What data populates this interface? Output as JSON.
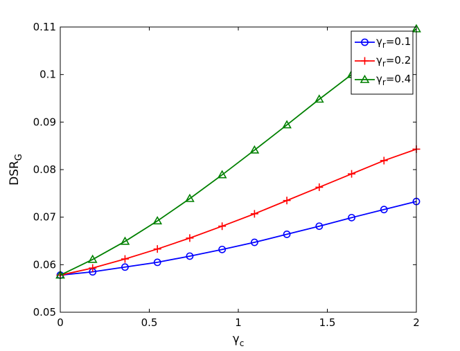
{
  "chart_data": {
    "type": "line",
    "title": "",
    "xlabel": {
      "main": "γ",
      "sub": "c"
    },
    "ylabel": {
      "main": "DSR",
      "sub": "G"
    },
    "xlim": [
      0,
      2
    ],
    "ylim": [
      0.05,
      0.11
    ],
    "x_ticks": [
      0,
      0.5,
      1,
      1.5,
      2
    ],
    "x_tick_labels": [
      "0",
      "0.5",
      "1",
      "1.5",
      "2"
    ],
    "y_ticks": [
      0.05,
      0.06,
      0.07,
      0.08,
      0.09,
      0.1,
      0.11
    ],
    "y_tick_labels": [
      "0.05",
      "0.06",
      "0.07",
      "0.08",
      "0.09",
      "0.1",
      "0.11"
    ],
    "grid": false,
    "legend_position": "top-right",
    "x": [
      0,
      0.1818,
      0.3636,
      0.5455,
      0.7273,
      0.9091,
      1.0909,
      1.2727,
      1.4545,
      1.6364,
      1.8182,
      2.0
    ],
    "series": [
      {
        "name": "γr=0.1",
        "legend_main": "γ",
        "legend_sub": "r",
        "legend_value": "=0.1",
        "color": "#0000ff",
        "marker": "circle",
        "values": [
          0.0578,
          0.0585,
          0.0595,
          0.0605,
          0.0618,
          0.0632,
          0.0647,
          0.0664,
          0.0681,
          0.0699,
          0.0716,
          0.0733
        ]
      },
      {
        "name": "γr=0.2",
        "legend_main": "γ",
        "legend_sub": "r",
        "legend_value": "=0.2",
        "color": "#ff0000",
        "marker": "plus",
        "values": [
          0.0578,
          0.0593,
          0.0612,
          0.0633,
          0.0656,
          0.0681,
          0.0707,
          0.0735,
          0.0763,
          0.0791,
          0.0819,
          0.0843
        ]
      },
      {
        "name": "γr=0.4",
        "legend_main": "γ",
        "legend_sub": "r",
        "legend_value": "=0.4",
        "color": "#008000",
        "marker": "triangle",
        "values": [
          0.0578,
          0.0611,
          0.0649,
          0.0692,
          0.0739,
          0.0789,
          0.0841,
          0.0894,
          0.0948,
          0.1,
          0.104,
          0.1096
        ]
      }
    ]
  }
}
